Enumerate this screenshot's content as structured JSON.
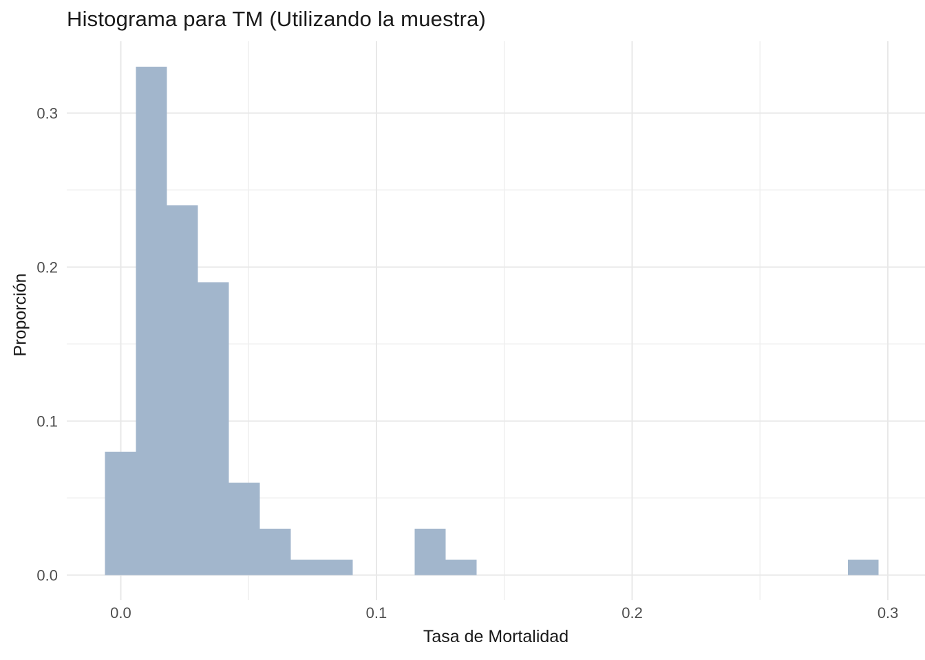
{
  "chart_data": {
    "type": "bar",
    "subtype": "histogram",
    "title": "Histograma para TM (Utilizando la muestra)",
    "xlabel": "Tasa de Mortalidad",
    "ylabel": "Proporción",
    "legend": "none",
    "grid": true,
    "bar_color": "#a2b6cc",
    "grid_major_color": "#e8e8e8",
    "grid_minor_color": "#efefef",
    "tick_label_color": "#4d4d4d",
    "xlim": [
      -0.0211,
      0.3145
    ],
    "ylim": [
      -0.0164,
      0.3466
    ],
    "x_ticks": [
      0.0,
      0.1,
      0.2,
      0.3
    ],
    "x_tick_labels": [
      "0.0",
      "0.1",
      "0.2",
      "0.3"
    ],
    "x_minor_ticks": [
      0.05,
      0.15,
      0.25
    ],
    "y_ticks": [
      0.0,
      0.1,
      0.2,
      0.3
    ],
    "y_tick_labels": [
      "0.0",
      "0.1",
      "0.2",
      "0.3"
    ],
    "y_minor_ticks": [
      0.05,
      0.15,
      0.25
    ],
    "bin_start": -0.0061,
    "bin_width": 0.0121,
    "proportions": [
      0.08,
      0.33,
      0.24,
      0.19,
      0.06,
      0.03,
      0.01,
      0.01,
      0,
      0,
      0.03,
      0.01,
      0,
      0,
      0,
      0,
      0,
      0,
      0,
      0,
      0,
      0,
      0,
      0,
      0.01
    ]
  }
}
